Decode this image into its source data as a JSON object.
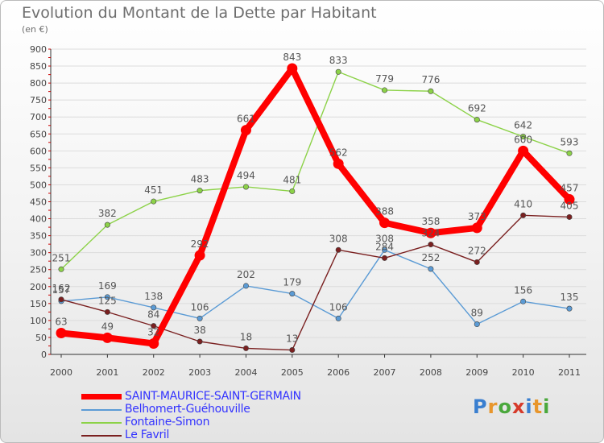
{
  "header": {
    "title": "Evolution du Montant de la Dette par Habitant",
    "unit": "(en €)"
  },
  "chart_data": {
    "type": "line",
    "title": "Evolution du Montant de la Dette par Habitant",
    "ylabel": "(en €)",
    "xlabel": "",
    "categories": [
      "2000",
      "2001",
      "2002",
      "2003",
      "2004",
      "2005",
      "2006",
      "2007",
      "2008",
      "2009",
      "2010",
      "2011"
    ],
    "ylim": [
      0,
      900
    ],
    "yticks": [
      0,
      50,
      100,
      150,
      200,
      250,
      300,
      350,
      400,
      450,
      500,
      550,
      600,
      650,
      700,
      750,
      800,
      850,
      900
    ],
    "grid": "horizontal",
    "legend_position": "bottom-left",
    "series": [
      {
        "name": "SAINT-MAURICE-SAINT-GERMAIN",
        "color": "#ff0000",
        "values": [
          63,
          49,
          32,
          292,
          661,
          843,
          562,
          388,
          358,
          373,
          600,
          457
        ]
      },
      {
        "name": "Belhomert-Guéhouville",
        "color": "#5b9bd5",
        "values": [
          157,
          169,
          138,
          106,
          202,
          179,
          106,
          308,
          252,
          89,
          156,
          135
        ]
      },
      {
        "name": "Fontaine-Simon",
        "color": "#8cd248",
        "values": [
          251,
          382,
          451,
          483,
          494,
          481,
          833,
          779,
          776,
          692,
          642,
          593
        ]
      },
      {
        "name": "Le Favril",
        "color": "#7a2020",
        "values": [
          162,
          125,
          84,
          38,
          18,
          13,
          308,
          284,
          324,
          272,
          410,
          405
        ]
      }
    ]
  },
  "legend": {
    "items": [
      {
        "label": "SAINT-MAURICE-SAINT-GERMAIN",
        "color": "#ff0000"
      },
      {
        "label": "Belhomert-Guéhouville",
        "color": "#5b9bd5"
      },
      {
        "label": "Fontaine-Simon",
        "color": "#8cd248"
      },
      {
        "label": "Le Favril",
        "color": "#7a2020"
      }
    ]
  },
  "logo": {
    "text": "Proxiti",
    "letters": [
      {
        "ch": "P",
        "color": "#3a7fd0"
      },
      {
        "ch": "r",
        "color": "#e8962c"
      },
      {
        "ch": "o",
        "color": "#4aa83c"
      },
      {
        "ch": "x",
        "color": "#d63a2a"
      },
      {
        "ch": "i",
        "color": "#3a7fd0"
      },
      {
        "ch": "t",
        "color": "#e8962c"
      },
      {
        "ch": "i",
        "color": "#4aa83c"
      }
    ]
  }
}
